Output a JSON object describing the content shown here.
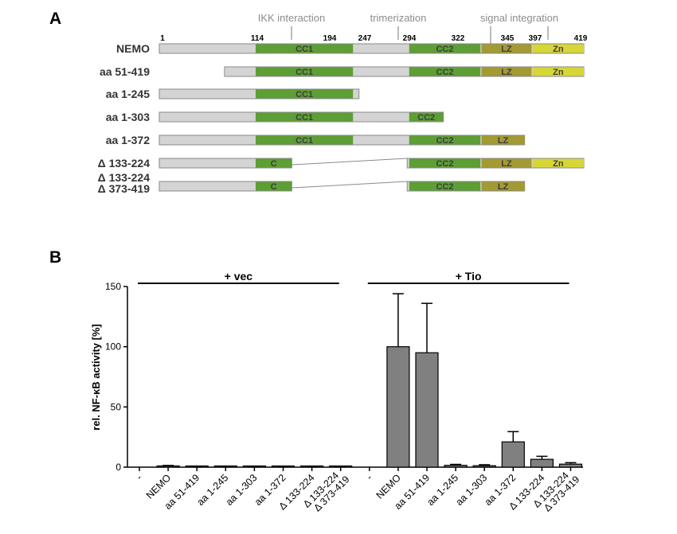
{
  "panel_a": {
    "letter": "A",
    "regions": [
      {
        "label": "IKK interaction",
        "center_pos": 134
      },
      {
        "label": "trimerization",
        "center_pos": 275
      },
      {
        "label": "signal integration",
        "center_pos": 376
      }
    ],
    "position_labels": [
      "1",
      "114",
      "194",
      "247",
      "294",
      "322",
      "345",
      "397",
      "419"
    ],
    "position_values": [
      1,
      114,
      194,
      247,
      294,
      322,
      345,
      397,
      419
    ],
    "domains": [
      {
        "name": "CC1",
        "start": 97,
        "end": 194,
        "color": "#5d9e35"
      },
      {
        "name": "CC2",
        "start": 250,
        "end": 321,
        "color": "#5d9e35"
      },
      {
        "name": "LZ",
        "start": 322,
        "end": 372,
        "color": "#a39a34"
      },
      {
        "name": "Zn",
        "start": 373,
        "end": 424,
        "color": "#d6d636"
      }
    ],
    "constructs": [
      {
        "label": "NEMO",
        "start": 1,
        "end": 424,
        "gap": null,
        "domains": [
          [
            "CC1",
            "CC1"
          ],
          [
            "CC2",
            "CC2"
          ],
          [
            "LZ",
            "LZ"
          ],
          [
            "Zn",
            "Zn"
          ]
        ]
      },
      {
        "label": "aa 51-419",
        "start": 66,
        "end": 424,
        "gap": null,
        "domains": [
          [
            "CC1",
            "CC1"
          ],
          [
            "CC2",
            "CC2"
          ],
          [
            "LZ",
            "LZ"
          ],
          [
            "Zn",
            "Zn"
          ]
        ]
      },
      {
        "label": "aa 1-245",
        "start": 1,
        "end": 200,
        "gap": null,
        "domains": [
          [
            "CC1",
            "CC1"
          ]
        ]
      },
      {
        "label": "aa 1-303",
        "start": 1,
        "end": 284,
        "gap": null,
        "domains": [
          [
            "CC1",
            "CC1"
          ],
          [
            "CC2",
            "CC2"
          ]
        ]
      },
      {
        "label": "aa 1-372",
        "start": 1,
        "end": 365,
        "gap": null,
        "domains": [
          [
            "CC1",
            "CC1"
          ],
          [
            "CC2",
            "CC2"
          ],
          [
            "LZ",
            "LZ"
          ]
        ]
      },
      {
        "label": "Δ 133-224",
        "start": 1,
        "end": 424,
        "gap": [
          133,
          198
        ],
        "domains": [
          [
            "CC1",
            "C"
          ],
          [
            "CC2",
            "CC2"
          ],
          [
            "LZ",
            "LZ"
          ],
          [
            "Zn",
            "Zn"
          ]
        ]
      },
      {
        "label": "Δ 133-224\nΔ 373-419",
        "label_lines": [
          "Δ 133-224",
          "Δ 373-419"
        ],
        "start": 1,
        "end": 365,
        "gap": [
          133,
          198
        ],
        "domains": [
          [
            "CC1",
            "C"
          ],
          [
            "CC2",
            "CC2"
          ],
          [
            "LZ",
            "LZ"
          ]
        ]
      }
    ]
  },
  "panel_b": {
    "letter": "B",
    "groups": [
      {
        "label": "+  vec",
        "from": 0,
        "to": 7
      },
      {
        "label": "+ Tio",
        "from": 8,
        "to": 15
      }
    ]
  },
  "chart_data": {
    "type": "bar",
    "title": "",
    "xlabel": "",
    "ylabel": "rel. NF-κB activity [%]",
    "ylim": [
      0,
      150
    ],
    "yticks": [
      0,
      50,
      100,
      150
    ],
    "grid": false,
    "categories": [
      "-",
      "NEMO",
      "aa 51-419",
      "aa 1-245",
      "aa 1-303",
      "aa 1-372",
      "Δ 133-224",
      "Δ 133-224\nΔ 373-419",
      "-",
      "NEMO",
      "aa 51-419",
      "aa 1-245",
      "aa 1-303",
      "aa 1-372",
      "Δ 133-224",
      "Δ 133-224\nΔ 373-419"
    ],
    "category_lines": [
      [
        "-"
      ],
      [
        "NEMO"
      ],
      [
        "aa 51-419"
      ],
      [
        "aa 1-245"
      ],
      [
        "aa 1-303"
      ],
      [
        "aa 1-372"
      ],
      [
        "Δ 133-224"
      ],
      [
        "Δ 133-224",
        "Δ 373-419"
      ],
      [
        "-"
      ],
      [
        "NEMO"
      ],
      [
        "aa 51-419"
      ],
      [
        "aa 1-245"
      ],
      [
        "aa 1-303"
      ],
      [
        "aa 1-372"
      ],
      [
        "Δ 133-224"
      ],
      [
        "Δ 133-224",
        "Δ 373-419"
      ]
    ],
    "values": [
      0.0,
      0.8,
      0.3,
      0.4,
      0.4,
      0.3,
      0.2,
      0.4,
      0.0,
      100,
      95,
      1.5,
      1.2,
      21,
      6.5,
      2.5
    ],
    "errors": [
      0.0,
      0.6,
      0.3,
      0.3,
      0.3,
      0.2,
      0.2,
      0.3,
      0.0,
      44,
      41,
      0.8,
      0.8,
      8.5,
      2.5,
      1.2
    ],
    "bar_color": "#808080"
  }
}
